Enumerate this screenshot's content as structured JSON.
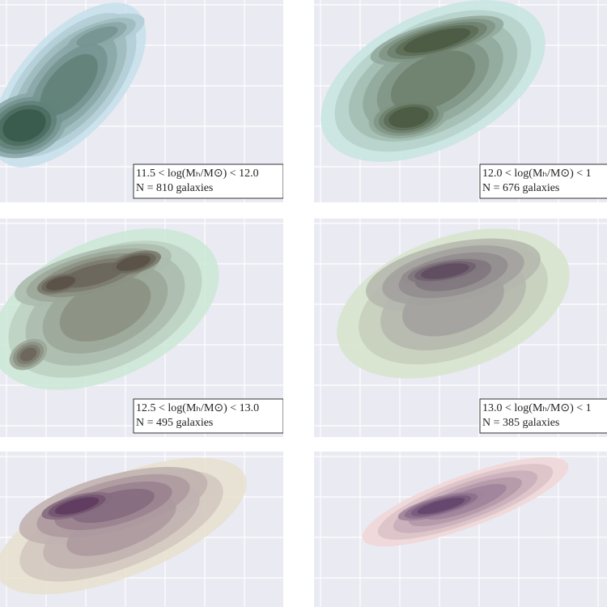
{
  "panels": [
    {
      "range_label": "11.5 < log(Mₕ/M⊙) < 12.0",
      "count_label": "N = 810 galaxies"
    },
    {
      "range_label": "12.0 < log(Mₕ/M⊙) < 1",
      "count_label": "N = 676 galaxies"
    },
    {
      "range_label": "12.5 < log(Mₕ/M⊙) < 13.0",
      "count_label": "N = 495 galaxies"
    },
    {
      "range_label": "13.0 < log(Mₕ/M⊙) < 1",
      "count_label": "N = 385 galaxies"
    },
    {},
    {}
  ]
}
